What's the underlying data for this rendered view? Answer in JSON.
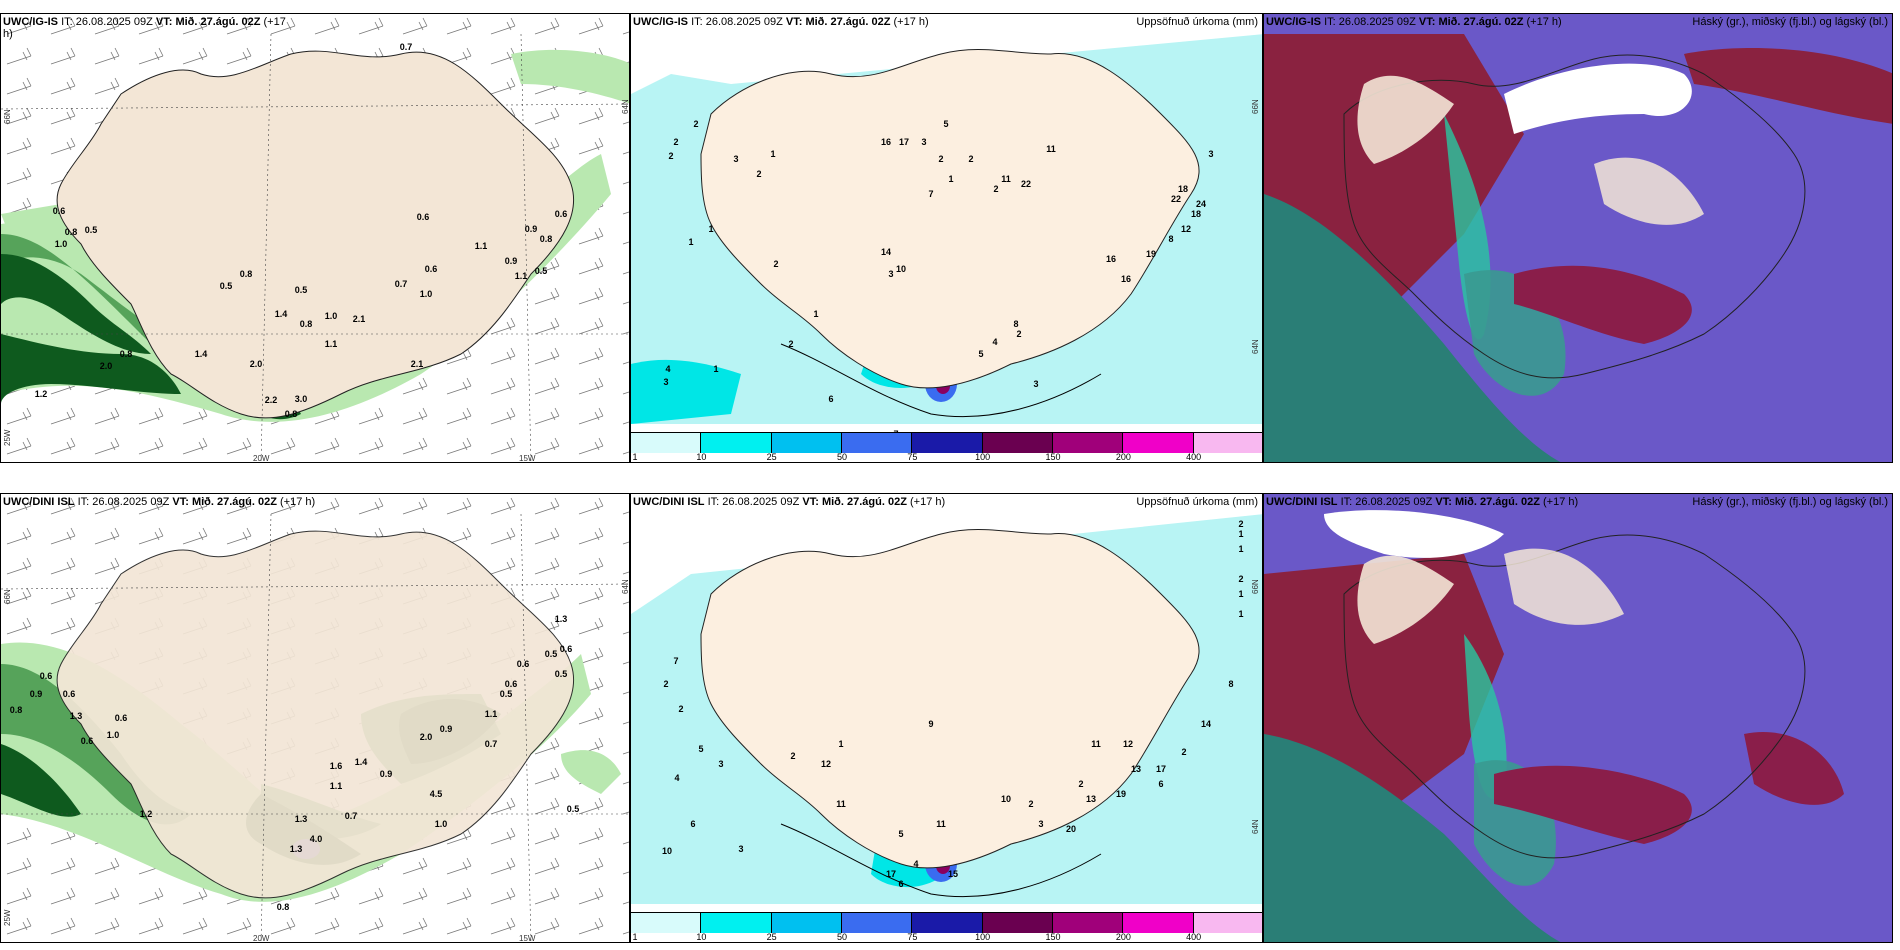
{
  "legend": {
    "colors": [
      "#d8fbfb",
      "#00f0f0",
      "#00c0f0",
      "#3a6cf0",
      "#1a1aa8",
      "#6a0050",
      "#a0007a",
      "#f000c8",
      "#f8b8f0"
    ],
    "ticks": [
      "1",
      "10",
      "25",
      "50",
      "75",
      "100",
      "150",
      "200",
      "400"
    ]
  },
  "panels": [
    {
      "id": "p1",
      "model": "UWC/IG-IS",
      "it_label": "IT:",
      "it": "26.08.2025 09Z",
      "vt_label": "VT:",
      "vt": "Mið. 27.ágú. 02Z",
      "lead": "(+17",
      "lead2": "h)",
      "right": "",
      "axis": [
        "66N",
        "20W",
        "15W",
        "64N",
        "25W"
      ],
      "labels": [
        "0.7",
        "0.6",
        "0.6",
        "0.8",
        "0.5",
        "1.0",
        "0.6",
        "0.9",
        "0.8",
        "1.1",
        "0.6",
        "0.7",
        "1.0",
        "0.8",
        "0.5",
        "0.5",
        "1.0",
        "1.4",
        "2.1",
        "0.8",
        "2.0",
        "2.2",
        "3.0",
        "0.8",
        "2.1",
        "1.1",
        "0.9",
        "1.1",
        "0.5",
        "1.4",
        "0.8",
        "2.0",
        "1.2"
      ]
    },
    {
      "id": "p2",
      "model": "UWC/IG-IS",
      "it_label": "IT:",
      "it": "26.08.2025 09Z",
      "vt_label": "VT:",
      "vt": "Mið. 27.ágú. 02Z",
      "lead": "(+17 h)",
      "right": "Uppsöfnuð úrkoma (mm)",
      "axis": [
        "66N",
        "64N"
      ],
      "labels": [
        "2",
        "2",
        "2",
        "3",
        "1",
        "2",
        "1",
        "1",
        "2",
        "3",
        "1",
        "2",
        "4",
        "3",
        "1",
        "6",
        "7",
        "5",
        "4",
        "8",
        "2",
        "3",
        "16",
        "16",
        "12",
        "8",
        "19",
        "22",
        "24",
        "18",
        "18",
        "3",
        "11",
        "22",
        "11",
        "14",
        "10",
        "16",
        "17",
        "3",
        "2",
        "2",
        "1",
        "7",
        "2",
        "5"
      ]
    },
    {
      "id": "p3",
      "model": "UWC/IG-IS",
      "it_label": "IT:",
      "it": "26.08.2025 09Z",
      "vt_label": "VT:",
      "vt": "Mið. 27.ágú. 02Z",
      "lead": "(+17 h)",
      "right": "Háský (gr.), miðský (fj.bl.) og lágský (bl.)",
      "axis": [],
      "labels": []
    },
    {
      "id": "p4",
      "model": "UWC/DINI ISL",
      "it_label": "IT:",
      "it": "26.08.2025 09Z",
      "vt_label": "VT:",
      "vt": "Mið. 27.ágú. 02Z",
      "lead": "(+17 h)",
      "right": "",
      "axis": [
        "66N",
        "20W",
        "15W",
        "64N",
        "25W"
      ],
      "labels": [
        "0.6",
        "0.9",
        "0.6",
        "0.8",
        "1.3",
        "0.6",
        "1.0",
        "0.6",
        "1.2",
        "1.3",
        "0.6",
        "0.5",
        "0.6",
        "0.5",
        "1.1",
        "0.6",
        "2.0",
        "4.5",
        "1.0",
        "0.5",
        "0.9",
        "1.4",
        "0.9",
        "1.6",
        "1.1",
        "0.7",
        "1.3",
        "4.0",
        "1.3",
        "0.8",
        "0.7",
        "0.5"
      ]
    },
    {
      "id": "p5",
      "model": "UWC/DINI ISL",
      "it_label": "IT:",
      "it": "26.08.2025 09Z",
      "vt_label": "VT:",
      "vt": "Mið. 27.ágú. 02Z",
      "lead": "(+17 h)",
      "right": "Uppsöfnuð úrkoma (mm)",
      "axis": [
        "66N",
        "64N"
      ],
      "labels": [
        "2",
        "1",
        "1",
        "2",
        "1",
        "1",
        "7",
        "2",
        "2",
        "4",
        "5",
        "3",
        "6",
        "10",
        "3",
        "2",
        "1",
        "12",
        "11",
        "5",
        "11",
        "15",
        "17",
        "6",
        "4",
        "10",
        "2",
        "3",
        "2",
        "13",
        "20",
        "19",
        "13",
        "6",
        "14",
        "17",
        "12",
        "2",
        "9",
        "8",
        "11"
      ]
    },
    {
      "id": "p6",
      "model": "UWC/DINI ISL",
      "it_label": "IT:",
      "it": "26.08.2025 09Z",
      "vt_label": "VT:",
      "vt": "Mið. 27.ágú. 02Z",
      "lead": "(+17 h)",
      "right": "Háský (gr.), miðský (fj.bl.) og lágský (bl.)",
      "axis": [],
      "labels": []
    }
  ]
}
